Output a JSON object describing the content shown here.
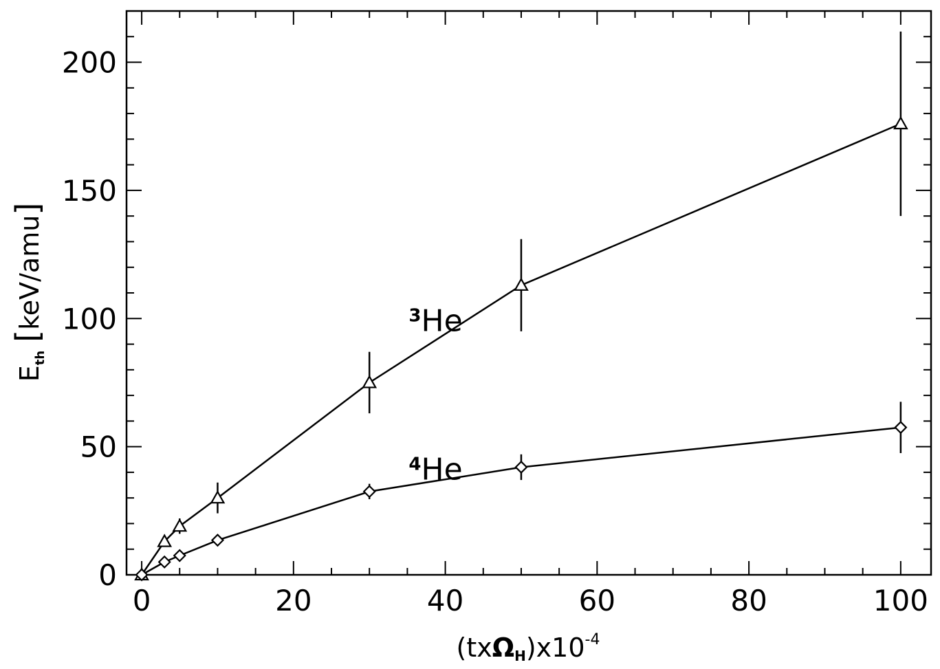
{
  "chart_data": {
    "type": "line",
    "xlabel": {
      "pre": "(tx",
      "omega": "Ω",
      "omega_sub": "H",
      "post": ")x10",
      "exp": "-4"
    },
    "ylabel": {
      "main": "E",
      "sub": "th",
      "bracket_open": "[",
      "unit": "keV/amu",
      "bracket_close": "]"
    },
    "xlim": [
      -2,
      104
    ],
    "ylim": [
      0,
      220
    ],
    "xticks": [
      0,
      20,
      40,
      60,
      80,
      100
    ],
    "xtick_labels": [
      "0",
      "20",
      "40",
      "60",
      "80",
      "100"
    ],
    "x_minor_step": 5,
    "yticks": [
      0,
      50,
      100,
      150,
      200
    ],
    "ytick_labels": [
      "0",
      "50",
      "100",
      "150",
      "200"
    ],
    "y_minor_step": 10,
    "grid": false,
    "series": [
      {
        "name": "3He",
        "label_sup": "3",
        "label_text": "He",
        "marker": "triangle",
        "label_at": [
          35,
          100
        ],
        "x": [
          0,
          3,
          5,
          10,
          30,
          50,
          100
        ],
        "y": [
          0,
          13,
          19,
          30,
          75,
          113,
          176
        ],
        "err": [
          0,
          0,
          3,
          6,
          12,
          18,
          36
        ]
      },
      {
        "name": "4He",
        "label_sup": "4",
        "label_text": "He",
        "marker": "diamond",
        "label_at": [
          35,
          42
        ],
        "x": [
          0,
          3,
          5,
          10,
          30,
          50,
          100
        ],
        "y": [
          0,
          5,
          7.5,
          13.5,
          32.5,
          42,
          57.5
        ],
        "err": [
          0,
          0,
          0,
          0,
          3,
          5,
          10
        ]
      }
    ]
  }
}
